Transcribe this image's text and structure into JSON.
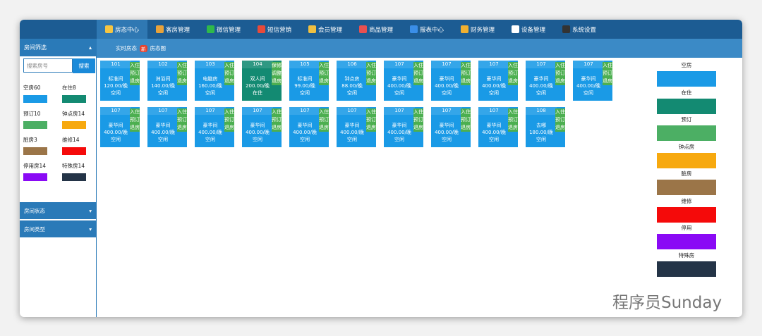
{
  "nav": [
    "房态中心",
    "客房管理",
    "微信管理",
    "短信营销",
    "会员管理",
    "商品管理",
    "报表中心",
    "财务管理",
    "设备管理",
    "系统设置"
  ],
  "sidebar": {
    "title": "房间筛选",
    "search_placeholder": "搜索房号",
    "search_button": "搜索",
    "statuses": [
      {
        "label": "空房60",
        "color": "#1a9ae6"
      },
      {
        "label": "在住8",
        "color": "#138a72"
      },
      {
        "label": "预订10",
        "color": "#4caf64"
      },
      {
        "label": "钟点房14",
        "color": "#f7a90f"
      },
      {
        "label": "脏房3",
        "color": "#9b7548"
      },
      {
        "label": "维修14",
        "color": "#f50a0a"
      },
      {
        "label": "停用房14",
        "color": "#8a0af5"
      },
      {
        "label": "特殊房14",
        "color": "#243447"
      }
    ],
    "sections": [
      "房间状态",
      "房间类型"
    ]
  },
  "tabs": {
    "realtime": "实时房态",
    "badge": "新",
    "map": "房态图"
  },
  "rooms": [
    {
      "number": "101",
      "type": "标准间",
      "price": "120.00/晚",
      "status": "空闲",
      "color": "#1a9ae6",
      "actions": [
        "入住",
        "预订",
        "退房"
      ]
    },
    {
      "number": "102",
      "type": "洲浴间",
      "price": "140.00/晚",
      "status": "空闲",
      "color": "#1a9ae6",
      "actions": [
        "入住",
        "预订",
        "退房"
      ]
    },
    {
      "number": "103",
      "type": "电脑房",
      "price": "160.00/晚",
      "status": "空闲",
      "color": "#1a9ae6",
      "actions": [
        "入住",
        "预订",
        "退房"
      ]
    },
    {
      "number": "104",
      "type": "双人间",
      "price": "200.00/晚",
      "status": "在住",
      "color": "#138a72",
      "actions": [
        "保修",
        "调整",
        "退房"
      ]
    },
    {
      "number": "105",
      "type": "标准间",
      "price": "99.00/晚",
      "status": "空闲",
      "color": "#1a9ae6",
      "actions": [
        "入住",
        "预订",
        "退房"
      ]
    },
    {
      "number": "106",
      "type": "钟点房",
      "price": "88.00/晚",
      "status": "空闲",
      "color": "#1a9ae6",
      "actions": [
        "入住",
        "预订",
        "退房"
      ]
    },
    {
      "number": "107",
      "type": "豪华间",
      "price": "400.00/晚",
      "status": "空闲",
      "color": "#1a9ae6",
      "actions": [
        "入住",
        "预订",
        "退房"
      ]
    },
    {
      "number": "107",
      "type": "豪华间",
      "price": "400.00/晚",
      "status": "空闲",
      "color": "#1a9ae6",
      "actions": [
        "入住",
        "预订",
        "退房"
      ]
    },
    {
      "number": "107",
      "type": "豪华间",
      "price": "400.00/晚",
      "status": "空闲",
      "color": "#1a9ae6",
      "actions": [
        "入住",
        "预订",
        "退房"
      ]
    },
    {
      "number": "107",
      "type": "豪华间",
      "price": "400.00/晚",
      "status": "空闲",
      "color": "#1a9ae6",
      "actions": [
        "入住",
        "预订",
        "退房"
      ]
    },
    {
      "number": "107",
      "type": "豪华间",
      "price": "400.00/晚",
      "status": "空闲",
      "color": "#1a9ae6",
      "actions": [
        "入住",
        "预订",
        "退房"
      ]
    },
    {
      "number": "107",
      "type": "豪华间",
      "price": "400.00/晚",
      "status": "空闲",
      "color": "#1a9ae6",
      "actions": [
        "入住",
        "预订",
        "退房"
      ]
    },
    {
      "number": "107",
      "type": "豪华间",
      "price": "400.00/晚",
      "status": "空闲",
      "color": "#1a9ae6",
      "actions": [
        "入住",
        "预订",
        "退房"
      ]
    },
    {
      "number": "107",
      "type": "豪华间",
      "price": "400.00/晚",
      "status": "空闲",
      "color": "#1a9ae6",
      "actions": [
        "入住",
        "预订",
        "退房"
      ]
    },
    {
      "number": "107",
      "type": "豪华间",
      "price": "400.00/晚",
      "status": "空闲",
      "color": "#1a9ae6",
      "actions": [
        "入住",
        "预订",
        "退房"
      ]
    },
    {
      "number": "107",
      "type": "豪华间",
      "price": "400.00/晚",
      "status": "空闲",
      "color": "#1a9ae6",
      "actions": [
        "入住",
        "预订",
        "退房"
      ]
    },
    {
      "number": "107",
      "type": "豪华间",
      "price": "400.00/晚",
      "status": "空闲",
      "color": "#1a9ae6",
      "actions": [
        "入住",
        "预订",
        "退房"
      ]
    },
    {
      "number": "107",
      "type": "豪华间",
      "price": "400.00/晚",
      "status": "空闲",
      "color": "#1a9ae6",
      "actions": [
        "入住",
        "预订",
        "退房"
      ]
    },
    {
      "number": "107",
      "type": "豪华间",
      "price": "400.00/晚",
      "status": "空闲",
      "color": "#1a9ae6",
      "actions": [
        "入住",
        "预订",
        "退房"
      ]
    },
    {
      "number": "107",
      "type": "豪华间",
      "price": "400.00/晚",
      "status": "空闲",
      "color": "#1a9ae6",
      "actions": [
        "入住",
        "预订",
        "退房"
      ]
    },
    {
      "number": "108",
      "type": "去哪",
      "price": "180.00/晚",
      "status": "空闲",
      "color": "#1a9ae6",
      "actions": [
        "入住",
        "预订",
        "退房"
      ]
    }
  ],
  "legend": [
    {
      "label": "空房",
      "color": "#1a9ae6"
    },
    {
      "label": "在住",
      "color": "#138a72"
    },
    {
      "label": "预订",
      "color": "#4caf64"
    },
    {
      "label": "钟点房",
      "color": "#f7a90f"
    },
    {
      "label": "脏房",
      "color": "#9b7548"
    },
    {
      "label": "维修",
      "color": "#f50a0a"
    },
    {
      "label": "停用",
      "color": "#8a0af5"
    },
    {
      "label": "特殊房",
      "color": "#243447"
    }
  ],
  "watermark": "程序员Sunday"
}
